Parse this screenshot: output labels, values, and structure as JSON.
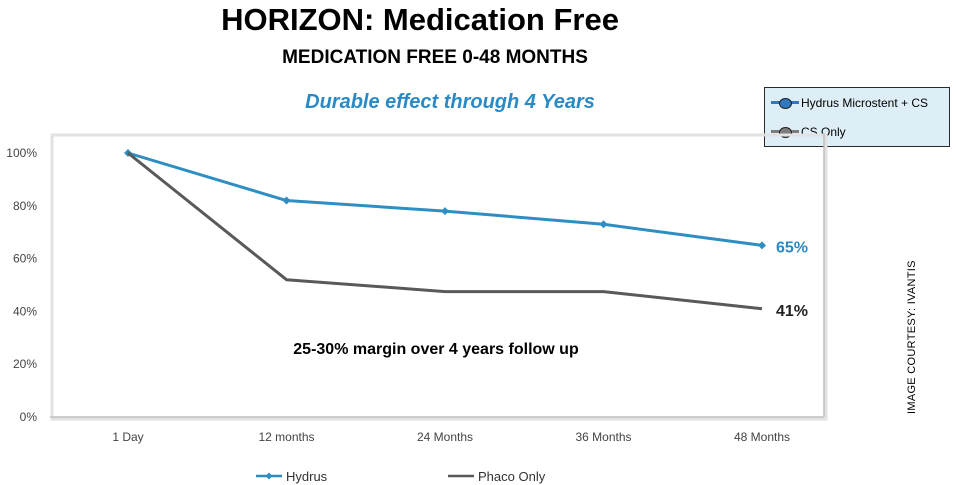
{
  "header": {
    "title": "HORIZON: Medication Free",
    "subtitle": "MEDICATION FREE 0-48 MONTHS",
    "tagline": "Durable effect through 4 Years"
  },
  "inset_legend": {
    "items": [
      {
        "label": "Hydrus Microstent + CS",
        "color": "#2f78c0"
      },
      {
        "label": "CS Only",
        "color": "#7d7d7d"
      }
    ]
  },
  "courtesy": "IMAGE COURTESY: IVANTIS",
  "colors": {
    "hydrus": "#2e8ec4",
    "phaco": "#595959",
    "axis": "#bfbfbf",
    "end_label_hydrus": "#2a8ac6",
    "end_label_phaco": "#222222"
  },
  "chart_data": {
    "type": "line",
    "categories": [
      "1 Day",
      "12 months",
      "24 Months",
      "36 Months",
      "48 Months"
    ],
    "y_ticks": [
      "0%",
      "20%",
      "40%",
      "60%",
      "80%",
      "100%"
    ],
    "ylim": [
      0,
      100
    ],
    "grid": false,
    "legend_position": "bottom",
    "series": [
      {
        "name": "Hydrus",
        "values": [
          100,
          82,
          78,
          73,
          65
        ],
        "marker": "diamond",
        "end_label": "65%"
      },
      {
        "name": "Phaco Only",
        "values": [
          100,
          52,
          47.5,
          47.5,
          41
        ],
        "marker": "none",
        "end_label": "41%"
      }
    ],
    "annotation": "25-30% margin over 4 years follow up"
  }
}
